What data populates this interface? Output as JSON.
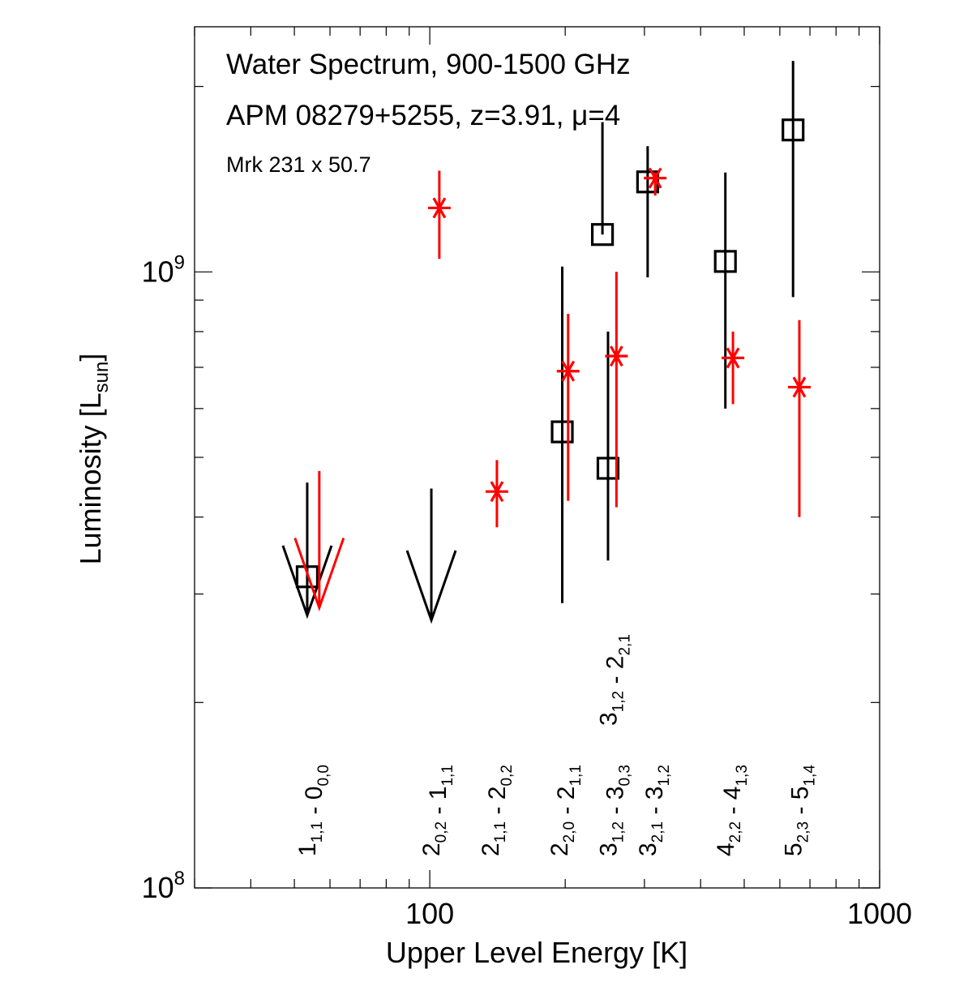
{
  "chart_data": {
    "type": "scatter",
    "title_lines": [
      {
        "text": "Water Spectrum, 900-1500 GHz",
        "color": "#000000"
      },
      {
        "text": "APM 08279+5255, z=3.91, μ=4",
        "color": "#000000"
      },
      {
        "text": "Mrk 231 x 50.7",
        "color": "#ff0000"
      }
    ],
    "xlabel": "Upper Level Energy [K]",
    "ylabel": "Luminosity [L",
    "ylabel_sub": "sun",
    "ylabel_end": "]",
    "xscale": "log",
    "yscale": "log",
    "xlim": [
      30,
      1000
    ],
    "ylim": [
      100000000.0,
      2500000000.0
    ],
    "x_ticklabels": [
      {
        "value": 100,
        "text": "100"
      },
      {
        "value": 1000,
        "text": "1000"
      }
    ],
    "y_ticklabels": [
      {
        "value": 100000000,
        "base": "10",
        "exp": "8"
      },
      {
        "value": 1000000000,
        "base": "10",
        "exp": "9"
      }
    ],
    "series": [
      {
        "name": "APM 08279+5255",
        "color": "#000000",
        "marker": "square",
        "points": [
          {
            "x": 197,
            "y": 550000000.0,
            "ylo": 290000000.0,
            "yhi": 1020000000.0
          },
          {
            "x": 242,
            "y": 1150000000.0,
            "ylo": 1150000000.0,
            "yhi": 1750000000.0
          },
          {
            "x": 249,
            "y": 480000000.0,
            "ylo": 340000000.0,
            "yhi": 800000000.0
          },
          {
            "x": 305,
            "y": 1400000000.0,
            "ylo": 980000000.0,
            "yhi": 1600000000.0
          },
          {
            "x": 454,
            "y": 1040000000.0,
            "ylo": 600000000.0,
            "yhi": 1450000000.0
          },
          {
            "x": 642,
            "y": 1700000000.0,
            "ylo": 910000000.0,
            "yhi": 2200000000.0
          }
        ],
        "upper_limits": [
          {
            "x": 53.4,
            "y_from": 455000000.0,
            "y_to": 277000000.0,
            "square_y": 320000000.0
          },
          {
            "x": 100.8,
            "y_from": 445000000.0,
            "y_to": 272000000.0
          }
        ]
      },
      {
        "name": "Mrk 231 x 50.7",
        "color": "#ff0000",
        "marker": "asterisk",
        "points": [
          {
            "x": 105,
            "y": 1270000000.0,
            "ylo": 1050000000.0,
            "yhi": 1460000000.0
          },
          {
            "x": 141,
            "y": 440000000.0,
            "ylo": 385000000.0,
            "yhi": 495000000.0
          },
          {
            "x": 203,
            "y": 690000000.0,
            "ylo": 425000000.0,
            "yhi": 855000000.0
          },
          {
            "x": 260,
            "y": 730000000.0,
            "ylo": 415000000.0,
            "yhi": 1000000000.0
          },
          {
            "x": 317,
            "y": 1420000000.0,
            "ylo": 1330000000.0,
            "yhi": 1450000000.0
          },
          {
            "x": 472,
            "y": 725000000.0,
            "ylo": 610000000.0,
            "yhi": 800000000.0
          },
          {
            "x": 663,
            "y": 650000000.0,
            "ylo": 400000000.0,
            "yhi": 835000000.0
          }
        ],
        "upper_limits": [
          {
            "x": 56.8,
            "y_from": 475000000.0,
            "y_to": 285000000.0
          }
        ]
      }
    ],
    "transitions": [
      {
        "x": 53.4,
        "parts": [
          [
            "1",
            "1,1"
          ],
          [
            "0",
            "0,0"
          ]
        ]
      },
      {
        "x": 100.8,
        "parts": [
          [
            "2",
            "0,2"
          ],
          [
            "1",
            "1,1"
          ]
        ]
      },
      {
        "x": 136.5,
        "parts": [
          [
            "2",
            "1,1"
          ],
          [
            "2",
            "0,2"
          ]
        ]
      },
      {
        "x": 194.1,
        "parts": [
          [
            "2",
            "2,0"
          ],
          [
            "2",
            "1,1"
          ]
        ]
      },
      {
        "x": 249.4,
        "parts": [
          [
            "3",
            "1,2"
          ],
          [
            "3",
            "0,3"
          ]
        ]
      },
      {
        "x": 305.3,
        "parts": [
          [
            "3",
            "2,1"
          ],
          [
            "3",
            "1,2"
          ]
        ]
      },
      {
        "x": 454.3,
        "parts": [
          [
            "4",
            "2,2"
          ],
          [
            "4",
            "1,3"
          ]
        ]
      },
      {
        "x": 642.7,
        "parts": [
          [
            "5",
            "2,3"
          ],
          [
            "5",
            "1,4"
          ]
        ]
      },
      {
        "x": 249.4,
        "row": "upper",
        "parts": [
          [
            "3",
            "1,2"
          ],
          [
            "2",
            "2,1"
          ]
        ]
      }
    ]
  }
}
